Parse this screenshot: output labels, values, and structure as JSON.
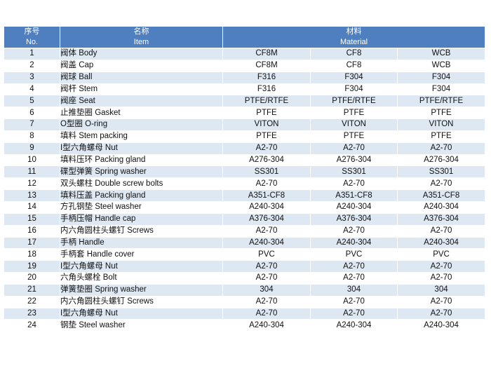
{
  "header": {
    "no_cn": "序号",
    "no_en": "No.",
    "item_cn": "名称",
    "item_en": "Item",
    "mat_cn": "材料",
    "mat_en": "Material"
  },
  "rows": [
    {
      "no": "1",
      "item": "阀体 Body",
      "m1": "CF8M",
      "m2": "CF8",
      "m3": "WCB"
    },
    {
      "no": "2",
      "item": "阀盖 Cap",
      "m1": "CF8M",
      "m2": "CF8",
      "m3": "WCB"
    },
    {
      "no": "3",
      "item": "阀球 Ball",
      "m1": "F316",
      "m2": "F304",
      "m3": "F304"
    },
    {
      "no": "4",
      "item": "阀杆 Stem",
      "m1": "F316",
      "m2": "F304",
      "m3": "F304"
    },
    {
      "no": "5",
      "item": "阀座 Seat",
      "m1": "PTFE/RTFE",
      "m2": "PTFE/RTFE",
      "m3": "PTFE/RTFE"
    },
    {
      "no": "6",
      "item": "止推垫圈 Gasket",
      "m1": "PTFE",
      "m2": "PTFE",
      "m3": "PTFE"
    },
    {
      "no": "7",
      "item": "O型圈 O-ring",
      "m1": "VITON",
      "m2": "VITON",
      "m3": "VITON"
    },
    {
      "no": "8",
      "item": "填料 Stem packing",
      "m1": "PTFE",
      "m2": "PTFE",
      "m3": "PTFE"
    },
    {
      "no": "9",
      "item": "I型六角螺母 Nut",
      "m1": "A2-70",
      "m2": "A2-70",
      "m3": "A2-70"
    },
    {
      "no": "10",
      "item": "填料压环 Packing gland",
      "m1": "A276-304",
      "m2": "A276-304",
      "m3": "A276-304"
    },
    {
      "no": "11",
      "item": "碟型弹簧 Spring washer",
      "m1": "SS301",
      "m2": "SS301",
      "m3": "SS301"
    },
    {
      "no": "12",
      "item": "双头螺柱 Double screw bolts",
      "m1": "A2-70",
      "m2": "A2-70",
      "m3": "A2-70"
    },
    {
      "no": "13",
      "item": "填料压盖 Packing gland",
      "m1": "A351-CF8",
      "m2": "A351-CF8",
      "m3": "A351-CF8"
    },
    {
      "no": "14",
      "item": "方孔钢垫 Steel washer",
      "m1": "A240-304",
      "m2": "A240-304",
      "m3": "A240-304"
    },
    {
      "no": "15",
      "item": "手柄压帽 Handle cap",
      "m1": "A376-304",
      "m2": "A376-304",
      "m3": "A376-304"
    },
    {
      "no": "16",
      "item": "内六角圆柱头螺钉 Screws",
      "m1": "A2-70",
      "m2": "A2-70",
      "m3": "A2-70"
    },
    {
      "no": "17",
      "item": "手柄 Handle",
      "m1": "A240-304",
      "m2": "A240-304",
      "m3": "A240-304"
    },
    {
      "no": "18",
      "item": "手柄套 Handle cover",
      "m1": "PVC",
      "m2": "PVC",
      "m3": "PVC"
    },
    {
      "no": "19",
      "item": "I型六角螺母 Nut",
      "m1": "A2-70",
      "m2": "A2-70",
      "m3": "A2-70"
    },
    {
      "no": "20",
      "item": "六角头螺栓 Bolt",
      "m1": "A2-70",
      "m2": "A2-70",
      "m3": "A2-70"
    },
    {
      "no": "21",
      "item": "弹簧垫圈 Spring washer",
      "m1": "304",
      "m2": "304",
      "m3": "304"
    },
    {
      "no": "22",
      "item": "内六角圆柱头螺钉 Screws",
      "m1": "A2-70",
      "m2": "A2-70",
      "m3": "A2-70"
    },
    {
      "no": "23",
      "item": "I型六角螺母 Nut",
      "m1": "A2-70",
      "m2": "A2-70",
      "m3": "A2-70"
    },
    {
      "no": "24",
      "item": "钢垫 Steel washer",
      "m1": "A240-304",
      "m2": "A240-304",
      "m3": "A240-304"
    }
  ]
}
